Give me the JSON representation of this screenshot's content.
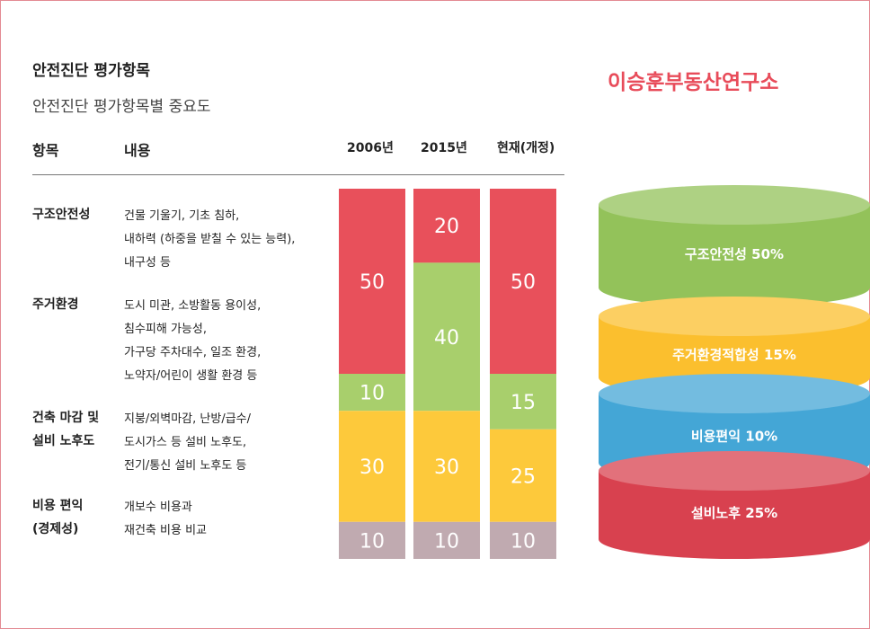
{
  "title": "안전진단 평가항목",
  "subtitle": "안전진단 평가항목별 중요도",
  "brand": "이승훈부동산연구소",
  "table": {
    "header_item": "항목",
    "header_content": "내용",
    "rows": [
      {
        "name": "구조안전성",
        "desc": [
          "건물 기울기, 기초 침하,",
          "내하력 (하중을 받칠 수 있는 능력),",
          "내구성 등"
        ]
      },
      {
        "name": "주거환경",
        "desc": [
          "도시 미관, 소방활동 용이성,",
          "침수피해 가능성,",
          "가구당 주차대수, 일조 환경,",
          "노약자/어린이 생활 환경 등"
        ]
      },
      {
        "name": "건축 마감 및 설비 노후도",
        "name_lines": [
          "건축 마감 및",
          "설비 노후도"
        ],
        "desc": [
          "지붕/외벽마감, 난방/급수/",
          "도시가스 등 설비 노후도,",
          "전기/통신 설비 노후도 등"
        ]
      },
      {
        "name": "비용 편익 (경제성)",
        "name_lines": [
          "비용 편익",
          "(경제성)"
        ],
        "desc": [
          "개보수 비용과",
          "재건축 비용 비교"
        ]
      }
    ]
  },
  "chart_data": [
    {
      "type": "bar",
      "stacked": true,
      "categories": [
        "2006년",
        "2015년",
        "현재(개정)"
      ],
      "series": [
        {
          "values": [
            50,
            20,
            50
          ],
          "color": "#e8505b"
        },
        {
          "values": [
            10,
            40,
            15
          ],
          "color": "#a8cf6c"
        },
        {
          "values": [
            30,
            30,
            25
          ],
          "color": "#fdc93b"
        },
        {
          "values": [
            10,
            10,
            10
          ],
          "color": "#c0aab0"
        }
      ],
      "ylim": [
        0,
        100
      ]
    },
    {
      "type": "pie",
      "labels": [
        "구조안전성 50%",
        "주거환경적합성 15%",
        "비용편익 10%",
        "설비노후 25%"
      ],
      "values": [
        50,
        15,
        10,
        25
      ],
      "colors": [
        "#93c25a",
        "#fbbf2e",
        "#44a6d6",
        "#d8414f"
      ]
    }
  ]
}
